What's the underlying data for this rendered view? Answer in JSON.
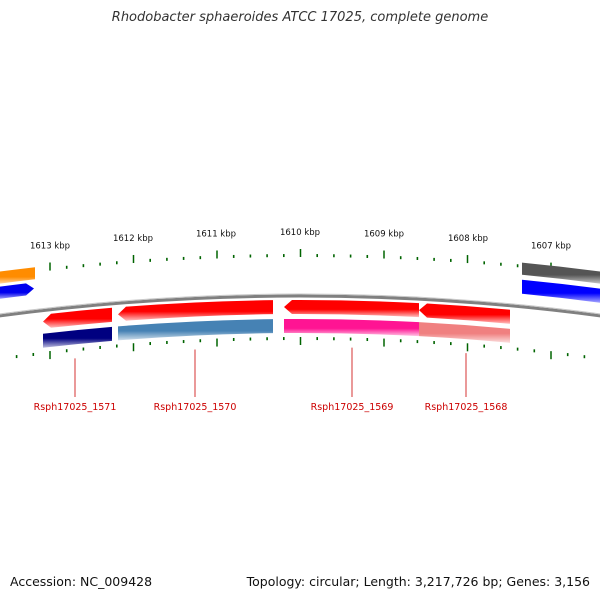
{
  "title": "Rhodobacter sphaeroides ATCC 17025, complete genome",
  "footer": {
    "accession": "Accession: NC_009428",
    "topology": "Topology: circular; Length: 3,217,726 bp; Genes: 3,156"
  },
  "scale": {
    "ticks": [
      {
        "label": "1613 kbp"
      },
      {
        "label": "1612 kbp"
      },
      {
        "label": "1611 kbp"
      },
      {
        "label": "1610 kbp"
      },
      {
        "label": "1609 kbp"
      },
      {
        "label": "1608 kbp"
      },
      {
        "label": "1607 kbp"
      }
    ]
  },
  "genes": [
    {
      "id": "orange-edge",
      "label": "",
      "strand": "forward",
      "color": "#ff8c00",
      "rowColor": ""
    },
    {
      "id": "blue-edge",
      "label": "",
      "strand": "forward",
      "color": "#0000ee",
      "rowColor": ""
    },
    {
      "id": "gray-edge",
      "label": "",
      "strand": "reverse",
      "color": "#555555",
      "rowColor": ""
    },
    {
      "id": "blue-right-edge",
      "label": "",
      "strand": "reverse",
      "color": "#0000ff",
      "rowColor": ""
    },
    {
      "id": "Rsph17025_1571",
      "label": "Rsph17025_1571",
      "strand": "reverse",
      "color": "#ff0000",
      "rowColor": "#000080"
    },
    {
      "id": "Rsph17025_1570",
      "label": "Rsph17025_1570",
      "strand": "reverse",
      "color": "#ff0000",
      "rowColor": "#4682b4"
    },
    {
      "id": "Rsph17025_1569",
      "label": "Rsph17025_1569",
      "strand": "reverse",
      "color": "#ff0000",
      "rowColor": "#ff1493"
    },
    {
      "id": "Rsph17025_1568",
      "label": "Rsph17025_1568",
      "strand": "reverse",
      "color": "#ff0000",
      "rowColor": "#f08080"
    }
  ],
  "colors": {
    "backbone": "#808080",
    "tick": "#006400",
    "label": "#cc0000",
    "title": "#333333"
  }
}
